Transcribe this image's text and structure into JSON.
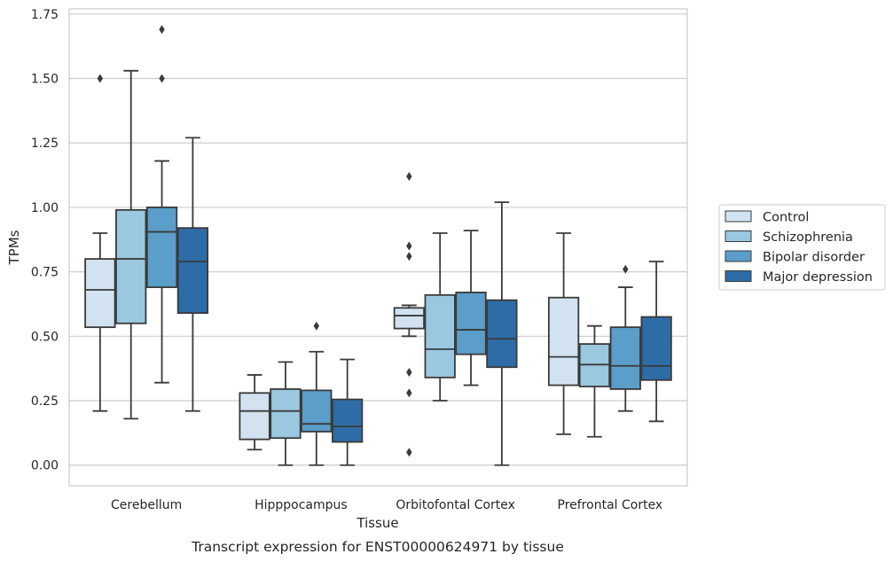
{
  "chart_data": {
    "type": "box",
    "caption": "Transcript expression for ENST00000624971 by tissue",
    "xlabel": "Tissue",
    "ylabel": "TPMs",
    "ylim": [
      -0.08,
      1.77
    ],
    "yticks": [
      "0.00",
      "0.25",
      "0.50",
      "0.75",
      "1.00",
      "1.25",
      "1.50",
      "1.75"
    ],
    "grid": "horizontal",
    "legend_position": "right",
    "categories": [
      "Cerebellum",
      "Hipppocampus",
      "Orbitofontal Cortex",
      "Prefrontal Cortex"
    ],
    "series": [
      {
        "name": "Control",
        "color": "#d2e2f1",
        "boxes": [
          {
            "whisker_low": 0.21,
            "q1": 0.535,
            "median": 0.68,
            "q3": 0.8,
            "whisker_high": 0.9,
            "outliers": [
              1.5
            ]
          },
          {
            "whisker_low": 0.06,
            "q1": 0.1,
            "median": 0.21,
            "q3": 0.28,
            "whisker_high": 0.35,
            "outliers": []
          },
          {
            "whisker_low": 0.5,
            "q1": 0.53,
            "median": 0.58,
            "q3": 0.61,
            "whisker_high": 0.62,
            "outliers": [
              1.12,
              0.85,
              0.81,
              0.36,
              0.28,
              0.05
            ]
          },
          {
            "whisker_low": 0.12,
            "q1": 0.31,
            "median": 0.42,
            "q3": 0.65,
            "whisker_high": 0.9,
            "outliers": []
          }
        ]
      },
      {
        "name": "Schizophrenia",
        "color": "#9ac8e0",
        "boxes": [
          {
            "whisker_low": 0.18,
            "q1": 0.55,
            "median": 0.8,
            "q3": 0.99,
            "whisker_high": 1.53,
            "outliers": []
          },
          {
            "whisker_low": 0.0,
            "q1": 0.105,
            "median": 0.21,
            "q3": 0.295,
            "whisker_high": 0.4,
            "outliers": []
          },
          {
            "whisker_low": 0.25,
            "q1": 0.34,
            "median": 0.45,
            "q3": 0.66,
            "whisker_high": 0.9,
            "outliers": []
          },
          {
            "whisker_low": 0.11,
            "q1": 0.305,
            "median": 0.39,
            "q3": 0.47,
            "whisker_high": 0.54,
            "outliers": []
          }
        ]
      },
      {
        "name": "Bipolar disorder",
        "color": "#5a9ec9",
        "boxes": [
          {
            "whisker_low": 0.32,
            "q1": 0.69,
            "median": 0.905,
            "q3": 1.0,
            "whisker_high": 1.18,
            "outliers": [
              1.69,
              1.5
            ]
          },
          {
            "whisker_low": 0.0,
            "q1": 0.13,
            "median": 0.16,
            "q3": 0.29,
            "whisker_high": 0.44,
            "outliers": [
              0.54
            ]
          },
          {
            "whisker_low": 0.31,
            "q1": 0.43,
            "median": 0.525,
            "q3": 0.67,
            "whisker_high": 0.91,
            "outliers": []
          },
          {
            "whisker_low": 0.21,
            "q1": 0.295,
            "median": 0.385,
            "q3": 0.535,
            "whisker_high": 0.69,
            "outliers": [
              0.76
            ]
          }
        ]
      },
      {
        "name": "Major depression",
        "color": "#2d6ca7",
        "boxes": [
          {
            "whisker_low": 0.21,
            "q1": 0.59,
            "median": 0.79,
            "q3": 0.92,
            "whisker_high": 1.27,
            "outliers": []
          },
          {
            "whisker_low": 0.0,
            "q1": 0.09,
            "median": 0.15,
            "q3": 0.255,
            "whisker_high": 0.41,
            "outliers": []
          },
          {
            "whisker_low": 0.0,
            "q1": 0.38,
            "median": 0.49,
            "q3": 0.64,
            "whisker_high": 1.02,
            "outliers": []
          },
          {
            "whisker_low": 0.17,
            "q1": 0.33,
            "median": 0.385,
            "q3": 0.575,
            "whisker_high": 0.79,
            "outliers": []
          }
        ]
      }
    ],
    "colors": {
      "line": "#3a3a3a",
      "grid": "#cccccc",
      "frame": "#cccccc"
    }
  }
}
